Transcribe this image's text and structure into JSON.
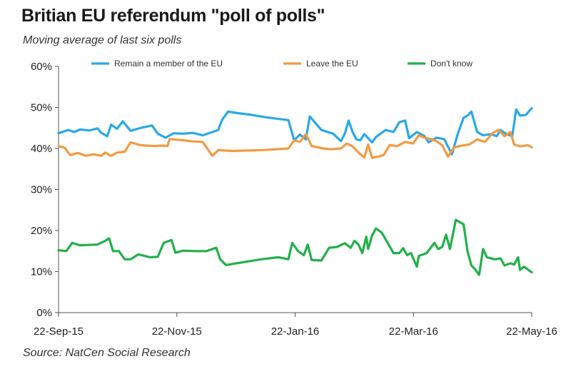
{
  "title": "Britian EU referendum \"poll of polls\"",
  "subtitle": "Moving average of last six polls",
  "source": "Source: NatCen Social Research",
  "chart_data": {
    "type": "line",
    "x_range": [
      "2015-09-22",
      "2016-05-22"
    ],
    "x_ticks": [
      "22-Sep-15",
      "22-Nov-15",
      "22-Jan-16",
      "22-Mar-16",
      "22-May-16"
    ],
    "y_ticks": [
      "0%",
      "10%",
      "20%",
      "30%",
      "40%",
      "50%",
      "60%"
    ],
    "ylim": [
      0,
      60
    ],
    "grid": false,
    "legend_position": "top",
    "series": [
      {
        "name": "Remain a member of the EU",
        "color": "#29a8e8",
        "points": [
          [
            "2015-09-22",
            43.7
          ],
          [
            "2015-09-27",
            44.5
          ],
          [
            "2015-09-30",
            44.0
          ],
          [
            "2015-10-03",
            44.6
          ],
          [
            "2015-10-08",
            44.4
          ],
          [
            "2015-10-12",
            44.9
          ],
          [
            "2015-10-14",
            43.8
          ],
          [
            "2015-10-17",
            43.0
          ],
          [
            "2015-10-19",
            45.8
          ],
          [
            "2015-10-22",
            44.8
          ],
          [
            "2015-10-25",
            46.6
          ],
          [
            "2015-10-29",
            44.3
          ],
          [
            "2015-11-03",
            45.0
          ],
          [
            "2015-11-09",
            45.6
          ],
          [
            "2015-11-12",
            43.6
          ],
          [
            "2015-11-16",
            42.6
          ],
          [
            "2015-11-20",
            43.7
          ],
          [
            "2015-11-25",
            43.6
          ],
          [
            "2015-11-30",
            43.8
          ],
          [
            "2015-12-05",
            43.2
          ],
          [
            "2015-12-10",
            44.0
          ],
          [
            "2015-12-13",
            44.5
          ],
          [
            "2015-12-15",
            47.0
          ],
          [
            "2015-12-18",
            49.0
          ],
          [
            "2015-12-23",
            48.6
          ],
          [
            "2015-12-30",
            48.2
          ],
          [
            "2016-01-08",
            47.5
          ],
          [
            "2016-01-18",
            46.9
          ],
          [
            "2016-01-21",
            42.0
          ],
          [
            "2016-01-24",
            43.4
          ],
          [
            "2016-01-27",
            42.2
          ],
          [
            "2016-01-29",
            47.8
          ],
          [
            "2016-02-04",
            44.5
          ],
          [
            "2016-02-10",
            43.6
          ],
          [
            "2016-02-14",
            41.8
          ],
          [
            "2016-02-16",
            43.6
          ],
          [
            "2016-02-18",
            46.8
          ],
          [
            "2016-02-20",
            44.0
          ],
          [
            "2016-02-22",
            42.2
          ],
          [
            "2016-02-24",
            42.0
          ],
          [
            "2016-02-26",
            43.5
          ],
          [
            "2016-03-01",
            41.5
          ],
          [
            "2016-03-03",
            42.8
          ],
          [
            "2016-03-05",
            43.5
          ],
          [
            "2016-03-08",
            44.5
          ],
          [
            "2016-03-12",
            44.0
          ],
          [
            "2016-03-15",
            46.4
          ],
          [
            "2016-03-18",
            46.8
          ],
          [
            "2016-03-20",
            42.5
          ],
          [
            "2016-03-24",
            44.0
          ],
          [
            "2016-03-28",
            43.0
          ],
          [
            "2016-03-30",
            41.5
          ],
          [
            "2016-04-03",
            42.6
          ],
          [
            "2016-04-07",
            42.3
          ],
          [
            "2016-04-11",
            38.6
          ],
          [
            "2016-04-14",
            43.5
          ],
          [
            "2016-04-17",
            47.5
          ],
          [
            "2016-04-19",
            48.0
          ],
          [
            "2016-04-21",
            49.0
          ],
          [
            "2016-04-24",
            44.0
          ],
          [
            "2016-04-27",
            43.2
          ],
          [
            "2016-05-01",
            43.5
          ],
          [
            "2016-05-04",
            43.0
          ],
          [
            "2016-05-06",
            44.5
          ],
          [
            "2016-05-09",
            43.5
          ],
          [
            "2016-05-12",
            43.0
          ],
          [
            "2016-05-14",
            49.5
          ],
          [
            "2016-05-16",
            48.0
          ],
          [
            "2016-05-19",
            48.2
          ],
          [
            "2016-05-22",
            49.8
          ]
        ]
      },
      {
        "name": "Leave the EU",
        "color": "#f39a42",
        "points": [
          [
            "2015-09-22",
            40.6
          ],
          [
            "2015-09-25",
            40.2
          ],
          [
            "2015-09-28",
            38.4
          ],
          [
            "2015-10-02",
            38.9
          ],
          [
            "2015-10-06",
            38.2
          ],
          [
            "2015-10-10",
            38.6
          ],
          [
            "2015-10-14",
            38.2
          ],
          [
            "2015-10-16",
            39.0
          ],
          [
            "2015-10-19",
            38.2
          ],
          [
            "2015-10-22",
            39.0
          ],
          [
            "2015-10-26",
            39.2
          ],
          [
            "2015-10-29",
            41.5
          ],
          [
            "2015-11-03",
            40.8
          ],
          [
            "2015-11-10",
            40.6
          ],
          [
            "2015-11-14",
            40.7
          ],
          [
            "2015-11-17",
            40.6
          ],
          [
            "2015-11-18",
            42.3
          ],
          [
            "2015-11-25",
            42.0
          ],
          [
            "2015-11-30",
            41.7
          ],
          [
            "2015-12-05",
            41.6
          ],
          [
            "2015-12-10",
            38.2
          ],
          [
            "2015-12-13",
            39.6
          ],
          [
            "2015-12-20",
            39.4
          ],
          [
            "2016-01-05",
            39.6
          ],
          [
            "2016-01-18",
            40.0
          ],
          [
            "2016-01-21",
            42.0
          ],
          [
            "2016-01-24",
            41.6
          ],
          [
            "2016-01-27",
            43.5
          ],
          [
            "2016-01-30",
            40.6
          ],
          [
            "2016-02-05",
            40.0
          ],
          [
            "2016-02-09",
            39.8
          ],
          [
            "2016-02-14",
            40.0
          ],
          [
            "2016-02-17",
            41.2
          ],
          [
            "2016-02-20",
            40.5
          ],
          [
            "2016-02-24",
            38.6
          ],
          [
            "2016-02-26",
            37.8
          ],
          [
            "2016-02-28",
            41.0
          ],
          [
            "2016-03-01",
            37.7
          ],
          [
            "2016-03-04",
            38.0
          ],
          [
            "2016-03-07",
            38.4
          ],
          [
            "2016-03-10",
            40.8
          ],
          [
            "2016-03-14",
            40.6
          ],
          [
            "2016-03-18",
            41.6
          ],
          [
            "2016-03-22",
            41.2
          ],
          [
            "2016-03-25",
            43.2
          ],
          [
            "2016-03-28",
            42.6
          ],
          [
            "2016-03-31",
            42.3
          ],
          [
            "2016-04-03",
            41.8
          ],
          [
            "2016-04-06",
            40.8
          ],
          [
            "2016-04-09",
            38.0
          ],
          [
            "2016-04-12",
            40.2
          ],
          [
            "2016-04-15",
            40.6
          ],
          [
            "2016-04-20",
            41.0
          ],
          [
            "2016-04-24",
            42.2
          ],
          [
            "2016-04-28",
            41.6
          ],
          [
            "2016-05-02",
            43.8
          ],
          [
            "2016-05-05",
            44.5
          ],
          [
            "2016-05-08",
            43.0
          ],
          [
            "2016-05-11",
            44.0
          ],
          [
            "2016-05-13",
            41.0
          ],
          [
            "2016-05-16",
            40.5
          ],
          [
            "2016-05-20",
            40.8
          ],
          [
            "2016-05-22",
            40.3
          ]
        ]
      },
      {
        "name": "Don't know",
        "color": "#22b04b",
        "points": [
          [
            "2015-09-22",
            15.2
          ],
          [
            "2015-09-26",
            15.0
          ],
          [
            "2015-09-29",
            17.0
          ],
          [
            "2015-10-03",
            16.4
          ],
          [
            "2015-10-08",
            16.5
          ],
          [
            "2015-10-12",
            16.6
          ],
          [
            "2015-10-16",
            17.5
          ],
          [
            "2015-10-18",
            18.1
          ],
          [
            "2015-10-20",
            15.0
          ],
          [
            "2015-10-23",
            15.0
          ],
          [
            "2015-10-26",
            13.0
          ],
          [
            "2015-10-29",
            13.0
          ],
          [
            "2015-11-02",
            14.2
          ],
          [
            "2015-11-08",
            13.5
          ],
          [
            "2015-11-12",
            13.6
          ],
          [
            "2015-11-15",
            17.0
          ],
          [
            "2015-11-19",
            17.7
          ],
          [
            "2015-11-21",
            14.6
          ],
          [
            "2015-11-25",
            15.1
          ],
          [
            "2015-12-01",
            15.0
          ],
          [
            "2015-12-07",
            15.0
          ],
          [
            "2015-12-12",
            15.8
          ],
          [
            "2015-12-14",
            13.0
          ],
          [
            "2015-12-17",
            11.6
          ],
          [
            "2016-01-04",
            13.0
          ],
          [
            "2016-01-13",
            13.5
          ],
          [
            "2016-01-18",
            13.0
          ],
          [
            "2016-01-20",
            17.0
          ],
          [
            "2016-01-23",
            15.0
          ],
          [
            "2016-01-26",
            14.0
          ],
          [
            "2016-01-28",
            16.6
          ],
          [
            "2016-01-30",
            12.8
          ],
          [
            "2016-02-04",
            12.7
          ],
          [
            "2016-02-08",
            15.8
          ],
          [
            "2016-02-12",
            16.0
          ],
          [
            "2016-02-16",
            16.9
          ],
          [
            "2016-02-19",
            15.8
          ],
          [
            "2016-02-21",
            17.5
          ],
          [
            "2016-02-23",
            16.6
          ],
          [
            "2016-02-25",
            14.5
          ],
          [
            "2016-02-27",
            18.5
          ],
          [
            "2016-02-28",
            15.5
          ],
          [
            "2016-03-01",
            18.8
          ],
          [
            "2016-03-03",
            20.5
          ],
          [
            "2016-03-06",
            19.5
          ],
          [
            "2016-03-09",
            17.0
          ],
          [
            "2016-03-12",
            14.5
          ],
          [
            "2016-03-15",
            14.5
          ],
          [
            "2016-03-17",
            15.7
          ],
          [
            "2016-03-19",
            14.0
          ],
          [
            "2016-03-21",
            14.5
          ],
          [
            "2016-03-24",
            11.2
          ],
          [
            "2016-03-25",
            13.8
          ],
          [
            "2016-03-29",
            14.5
          ],
          [
            "2016-04-02",
            17.0
          ],
          [
            "2016-04-04",
            15.5
          ],
          [
            "2016-04-06",
            16.0
          ],
          [
            "2016-04-08",
            19.0
          ],
          [
            "2016-04-10",
            15.5
          ],
          [
            "2016-04-13",
            22.6
          ],
          [
            "2016-04-17",
            21.5
          ],
          [
            "2016-04-19",
            15.0
          ],
          [
            "2016-04-21",
            11.5
          ],
          [
            "2016-04-23",
            10.5
          ],
          [
            "2016-04-25",
            9.2
          ],
          [
            "2016-04-27",
            15.5
          ],
          [
            "2016-04-29",
            13.5
          ],
          [
            "2016-05-03",
            13.0
          ],
          [
            "2016-05-06",
            13.2
          ],
          [
            "2016-05-08",
            11.5
          ],
          [
            "2016-05-11",
            12.0
          ],
          [
            "2016-05-13",
            11.7
          ],
          [
            "2016-05-15",
            13.5
          ],
          [
            "2016-05-16",
            10.4
          ],
          [
            "2016-05-18",
            11.2
          ],
          [
            "2016-05-20",
            10.5
          ],
          [
            "2016-05-22",
            9.8
          ]
        ]
      }
    ]
  }
}
